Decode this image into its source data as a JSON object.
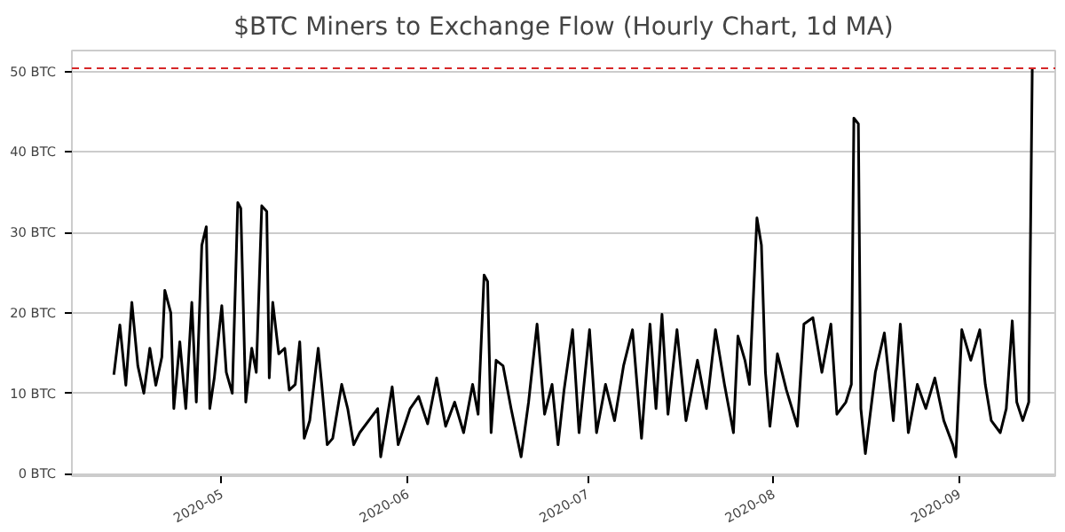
{
  "chart_data": {
    "type": "line",
    "title": "$BTC Miners to Exchange Flow (Hourly Chart, 1d MA)",
    "x": [
      "2020-04-13",
      "2020-04-14",
      "2020-04-15",
      "2020-04-16",
      "2020-04-17",
      "2020-04-18",
      "2020-04-19",
      "2020-04-20",
      "2020-04-21",
      "2020-04-21T12:00",
      "2020-04-22T12:00",
      "2020-04-23",
      "2020-04-24",
      "2020-04-25",
      "2020-04-26",
      "2020-04-26T18:00",
      "2020-04-27T16:00",
      "2020-04-28T10:00",
      "2020-04-29",
      "2020-04-29T18:00",
      "2020-05-01",
      "2020-05-01T18:00",
      "2020-05-02T18:00",
      "2020-05-03T16:00",
      "2020-05-04T04:00",
      "2020-05-05",
      "2020-05-06",
      "2020-05-06T18:00",
      "2020-05-07T16:00",
      "2020-05-08T12:00",
      "2020-05-08T22:00",
      "2020-05-09T12:00",
      "2020-05-10T12:00",
      "2020-05-11T12:00",
      "2020-05-12T06:00",
      "2020-05-13T06:00",
      "2020-05-14",
      "2020-05-14T18:00",
      "2020-05-15T16:00",
      "2020-05-17T02:00",
      "2020-05-17T16:00",
      "2020-05-18T14:00",
      "2020-05-19T12:00",
      "2020-05-21",
      "2020-05-22",
      "2020-05-23",
      "2020-05-24",
      "2020-05-27",
      "2020-05-27T12:00",
      "2020-05-29T10:00",
      "2020-05-30T10:00",
      "2020-06-01T10:00",
      "2020-06-02T20:00",
      "2020-06-04T08:00",
      "2020-06-05T20:00",
      "2020-06-07T08:00",
      "2020-06-08T20:00",
      "2020-06-10T08:00",
      "2020-06-11T20:00",
      "2020-06-12T18:00",
      "2020-06-13T18:00",
      "2020-06-14T08:00",
      "2020-06-14T22:00",
      "2020-06-15T18:00",
      "2020-06-16T22:00",
      "2020-06-18T06:00",
      "2020-06-19T22:00",
      "2020-06-21T04:00",
      "2020-06-22T14:00",
      "2020-06-23T20:00",
      "2020-06-25T02:00",
      "2020-06-26T02:00",
      "2020-06-27T02:00",
      "2020-06-28T12:00",
      "2020-06-29T14:00",
      "2020-07-01T08:00",
      "2020-07-02T12:00",
      "2020-07-04",
      "2020-07-05T12:00",
      "2020-07-07",
      "2020-07-08T12:00",
      "2020-07-10",
      "2020-07-11T10:00",
      "2020-07-12T10:00",
      "2020-07-13T10:00",
      "2020-07-14T10:00",
      "2020-07-15T22:00",
      "2020-07-17T10:00",
      "2020-07-19T08:00",
      "2020-07-20T20:00",
      "2020-07-22T08:00",
      "2020-07-23T20:00",
      "2020-07-25T08:00",
      "2020-07-26T02:00",
      "2020-07-27T06:00",
      "2020-07-28",
      "2020-07-29T06:00",
      "2020-07-30",
      "2020-07-30T16:00",
      "2020-07-31T10:00",
      "2020-08-01T16:00",
      "2020-08-03T04:00",
      "2020-08-05",
      "2020-08-06T02:00",
      "2020-08-07T14:00",
      "2020-08-09T02:00",
      "2020-08-10T14:00",
      "2020-08-11T14:00",
      "2020-08-13T02:00",
      "2020-08-14",
      "2020-08-14T10:00",
      "2020-08-15T04:00",
      "2020-08-15T14:00",
      "2020-08-16T08:00",
      "2020-08-18",
      "2020-08-19T12:00",
      "2020-08-21",
      "2020-08-22T04:00",
      "2020-08-23T12:00",
      "2020-08-25",
      "2020-08-26T10:00",
      "2020-08-27T22:00",
      "2020-08-29T10:00",
      "2020-08-30T22:00",
      "2020-08-31T10:00",
      "2020-09-01T10:00",
      "2020-09-02T22:00",
      "2020-09-04T10:00",
      "2020-09-05T08:00",
      "2020-09-06T08:00",
      "2020-09-07T20:00",
      "2020-09-08T20:00",
      "2020-09-09T20:00",
      "2020-09-10T14:00",
      "2020-09-11T14:00",
      "2020-09-12T14:00",
      "2020-09-13T04:00"
    ],
    "series": [
      {
        "color": "#000000",
        "values": [
          12.3,
          18.5,
          11,
          21.3,
          13.4,
          10,
          15.6,
          11,
          14.5,
          22.8,
          20,
          8.1,
          16.4,
          8.1,
          21.3,
          8.9,
          28.4,
          30.7,
          8.1,
          11.9,
          20.9,
          12.6,
          10,
          33.7,
          33,
          8.9,
          15.6,
          12.6,
          33.3,
          32.6,
          11.9,
          21.3,
          14.9,
          15.6,
          10.4,
          11.1,
          16.4,
          4.4,
          6.6,
          15.6,
          11.1,
          3.6,
          4.4,
          11.1,
          8.1,
          3.6,
          5.1,
          8.1,
          2.1,
          10.8,
          3.6,
          8.1,
          9.6,
          6.2,
          11.9,
          5.9,
          8.9,
          5.1,
          11.1,
          7.4,
          24.7,
          23.9,
          5.1,
          14.1,
          13.4,
          8.1,
          2.1,
          8.9,
          18.6,
          7.4,
          11.1,
          3.6,
          10.4,
          17.9,
          5.1,
          17.9,
          5.1,
          11.1,
          6.6,
          13.4,
          17.9,
          4.4,
          18.6,
          8.1,
          19.8,
          7.4,
          17.9,
          6.6,
          14.1,
          8.1,
          17.9,
          11.1,
          5.1,
          17.1,
          14.1,
          11.1,
          31.8,
          28.4,
          12.6,
          5.9,
          14.9,
          10.4,
          5.9,
          18.6,
          19.4,
          12.6,
          18.6,
          7.4,
          8.9,
          11.1,
          44.2,
          43.5,
          8.1,
          2.5,
          12.6,
          17.5,
          6.6,
          18.6,
          5.1,
          11.1,
          8.1,
          11.9,
          6.6,
          3.6,
          2.1,
          17.9,
          14.1,
          17.9,
          11.1,
          6.6,
          5.1,
          8.1,
          19,
          8.9,
          6.6,
          8.9,
          50.4
        ]
      }
    ],
    "xlim": [
      "2020-04-06",
      "2020-09-17"
    ],
    "xticks": [
      {
        "value": "2020-05-01",
        "label": "2020-05"
      },
      {
        "value": "2020-06-01",
        "label": "2020-06"
      },
      {
        "value": "2020-07-01",
        "label": "2020-07"
      },
      {
        "value": "2020-08-01",
        "label": "2020-08"
      },
      {
        "value": "2020-09-01",
        "label": "2020-09"
      }
    ],
    "ylim": [
      -0.3,
      52.6
    ],
    "yticks": [
      {
        "value": 0,
        "label": "0 BTC"
      },
      {
        "value": 10,
        "label": "10 BTC"
      },
      {
        "value": 20,
        "label": "20 BTC"
      },
      {
        "value": 30,
        "label": "30 BTC"
      },
      {
        "value": 40,
        "label": "40 BTC"
      },
      {
        "value": 50,
        "label": "50 BTC"
      }
    ],
    "ref_lines": [
      {
        "axis": "y",
        "value": 50.4,
        "color": "#d62728",
        "line_style": "dashed"
      }
    ],
    "grid": "y",
    "marker": "none",
    "line_style": "solid"
  }
}
